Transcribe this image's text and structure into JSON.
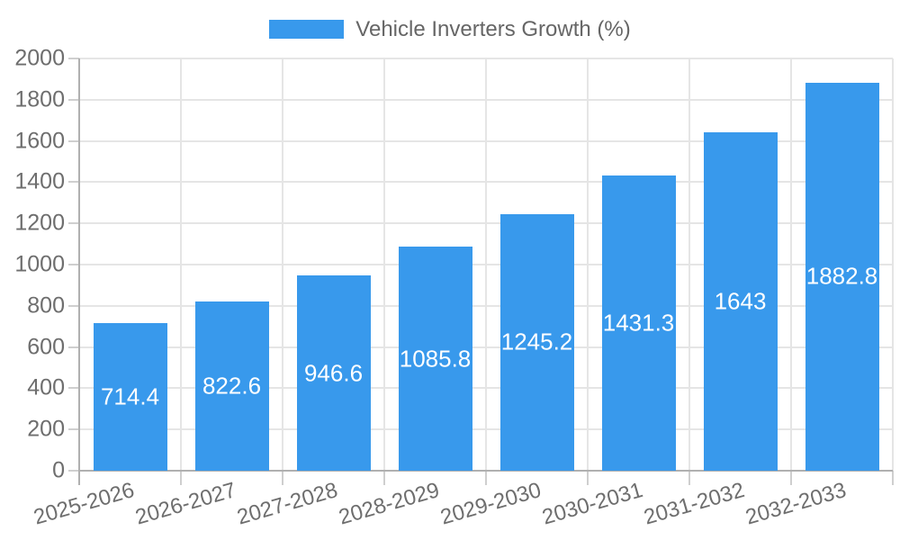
{
  "chart_data": {
    "type": "bar",
    "title": "",
    "legend": {
      "label": "Vehicle Inverters Growth (%)",
      "position": "top"
    },
    "categories": [
      "2025-2026",
      "2026-2027",
      "2027-2028",
      "2028-2029",
      "2029-2030",
      "2030-2031",
      "2031-2032",
      "2032-2033"
    ],
    "series": [
      {
        "name": "Vehicle Inverters Growth (%)",
        "values": [
          714.4,
          822.6,
          946.6,
          1085.8,
          1245.2,
          1431.3,
          1643,
          1882.8
        ],
        "value_labels": [
          "714.4",
          "822.6",
          "946.6",
          "1085.8",
          "1245.2",
          "1431.3",
          "1643",
          "1882.8"
        ]
      }
    ],
    "xlabel": "",
    "ylabel": "",
    "ylim": [
      0,
      2000
    ],
    "yticks": [
      0,
      200,
      400,
      600,
      800,
      1000,
      1200,
      1400,
      1600,
      1800,
      2000
    ],
    "grid": true,
    "colors": {
      "bar": "#3899ec",
      "gridline": "#e5e5e5",
      "axis_line": "#b0b0b0",
      "tick_mark": "#cfcfcf",
      "axis_label_text": "#6e6e6e",
      "legend_text": "#666666",
      "value_label_text": "#ffffff",
      "background": "#ffffff"
    }
  }
}
